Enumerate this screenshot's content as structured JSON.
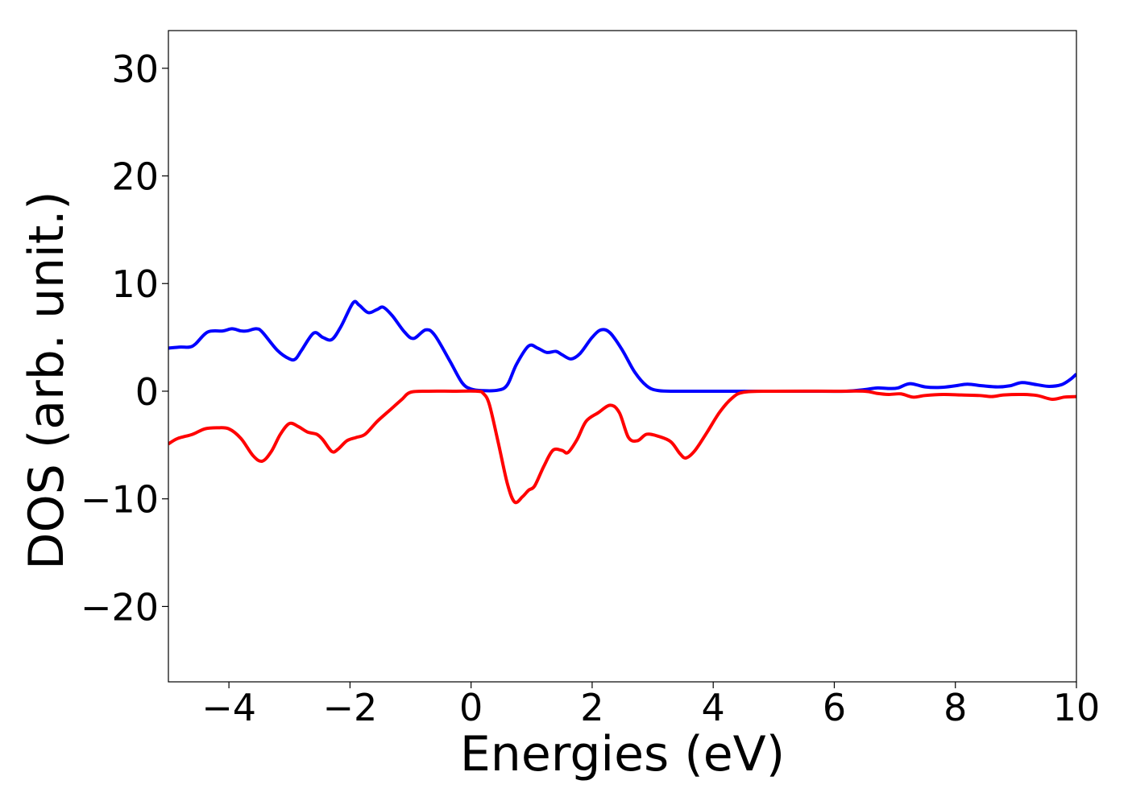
{
  "chart_data": {
    "type": "line",
    "title": "",
    "xlabel": "Energies (eV)",
    "ylabel": "DOS (arb. unit.)",
    "xlim": [
      -5,
      10
    ],
    "ylim": [
      -27,
      33.5
    ],
    "x_ticks": [
      -4,
      -2,
      0,
      2,
      4,
      6,
      8,
      10
    ],
    "x_tick_labels": [
      "−4",
      "−2",
      "0",
      "2",
      "4",
      "6",
      "8",
      "10"
    ],
    "y_ticks": [
      -20,
      -10,
      0,
      10,
      20,
      30
    ],
    "y_tick_labels": [
      "−20",
      "−10",
      "0",
      "10",
      "20",
      "30"
    ],
    "grid": false,
    "legend": false,
    "series": [
      {
        "color": "#0000ff",
        "points": [
          [
            -5.0,
            4.0
          ],
          [
            -4.8,
            4.1
          ],
          [
            -4.65,
            4.1
          ],
          [
            -4.55,
            4.4
          ],
          [
            -4.35,
            5.5
          ],
          [
            -4.1,
            5.6
          ],
          [
            -3.95,
            5.8
          ],
          [
            -3.8,
            5.6
          ],
          [
            -3.7,
            5.6
          ],
          [
            -3.55,
            5.8
          ],
          [
            -3.45,
            5.5
          ],
          [
            -3.2,
            3.8
          ],
          [
            -3.0,
            3.0
          ],
          [
            -2.9,
            3.0
          ],
          [
            -2.8,
            3.8
          ],
          [
            -2.6,
            5.4
          ],
          [
            -2.45,
            5.0
          ],
          [
            -2.3,
            4.8
          ],
          [
            -2.15,
            6.0
          ],
          [
            -1.95,
            8.2
          ],
          [
            -1.85,
            8.0
          ],
          [
            -1.7,
            7.3
          ],
          [
            -1.55,
            7.6
          ],
          [
            -1.45,
            7.8
          ],
          [
            -1.3,
            7.0
          ],
          [
            -1.1,
            5.5
          ],
          [
            -0.95,
            4.9
          ],
          [
            -0.75,
            5.7
          ],
          [
            -0.6,
            5.2
          ],
          [
            -0.35,
            2.8
          ],
          [
            -0.15,
            0.8
          ],
          [
            0.0,
            0.2
          ],
          [
            0.2,
            0.05
          ],
          [
            0.45,
            0.1
          ],
          [
            0.6,
            0.6
          ],
          [
            0.75,
            2.5
          ],
          [
            0.95,
            4.2
          ],
          [
            1.1,
            4.0
          ],
          [
            1.25,
            3.6
          ],
          [
            1.4,
            3.7
          ],
          [
            1.5,
            3.4
          ],
          [
            1.65,
            3.0
          ],
          [
            1.8,
            3.5
          ],
          [
            2.0,
            5.0
          ],
          [
            2.15,
            5.7
          ],
          [
            2.3,
            5.4
          ],
          [
            2.5,
            3.8
          ],
          [
            2.7,
            1.8
          ],
          [
            2.9,
            0.5
          ],
          [
            3.1,
            0.05
          ],
          [
            3.5,
            0.0
          ],
          [
            4.5,
            0.0
          ],
          [
            5.5,
            0.0
          ],
          [
            6.2,
            0.0
          ],
          [
            6.5,
            0.15
          ],
          [
            6.7,
            0.3
          ],
          [
            6.9,
            0.25
          ],
          [
            7.05,
            0.3
          ],
          [
            7.25,
            0.7
          ],
          [
            7.5,
            0.4
          ],
          [
            7.75,
            0.35
          ],
          [
            8.0,
            0.5
          ],
          [
            8.2,
            0.65
          ],
          [
            8.45,
            0.5
          ],
          [
            8.7,
            0.4
          ],
          [
            8.9,
            0.5
          ],
          [
            9.1,
            0.8
          ],
          [
            9.35,
            0.6
          ],
          [
            9.55,
            0.45
          ],
          [
            9.75,
            0.6
          ],
          [
            9.9,
            1.1
          ],
          [
            10.0,
            1.6
          ]
        ]
      },
      {
        "color": "#ff0000",
        "points": [
          [
            -5.0,
            -4.9
          ],
          [
            -4.85,
            -4.4
          ],
          [
            -4.6,
            -4.0
          ],
          [
            -4.4,
            -3.5
          ],
          [
            -4.2,
            -3.4
          ],
          [
            -4.0,
            -3.5
          ],
          [
            -3.8,
            -4.4
          ],
          [
            -3.6,
            -6.0
          ],
          [
            -3.45,
            -6.5
          ],
          [
            -3.3,
            -5.6
          ],
          [
            -3.15,
            -4.0
          ],
          [
            -3.0,
            -3.0
          ],
          [
            -2.85,
            -3.3
          ],
          [
            -2.7,
            -3.8
          ],
          [
            -2.55,
            -4.0
          ],
          [
            -2.45,
            -4.5
          ],
          [
            -2.3,
            -5.6
          ],
          [
            -2.2,
            -5.4
          ],
          [
            -2.05,
            -4.6
          ],
          [
            -1.9,
            -4.3
          ],
          [
            -1.75,
            -4.0
          ],
          [
            -1.55,
            -2.8
          ],
          [
            -1.35,
            -1.8
          ],
          [
            -1.15,
            -0.8
          ],
          [
            -1.0,
            -0.1
          ],
          [
            -0.7,
            0.0
          ],
          [
            -0.3,
            0.0
          ],
          [
            0.1,
            0.0
          ],
          [
            0.2,
            -0.2
          ],
          [
            0.3,
            -1.2
          ],
          [
            0.45,
            -4.8
          ],
          [
            0.6,
            -8.6
          ],
          [
            0.72,
            -10.3
          ],
          [
            0.85,
            -9.8
          ],
          [
            0.95,
            -9.2
          ],
          [
            1.05,
            -8.8
          ],
          [
            1.2,
            -7.0
          ],
          [
            1.35,
            -5.5
          ],
          [
            1.5,
            -5.5
          ],
          [
            1.6,
            -5.7
          ],
          [
            1.75,
            -4.5
          ],
          [
            1.9,
            -2.8
          ],
          [
            2.1,
            -2.0
          ],
          [
            2.3,
            -1.3
          ],
          [
            2.45,
            -2.0
          ],
          [
            2.6,
            -4.3
          ],
          [
            2.75,
            -4.6
          ],
          [
            2.9,
            -4.0
          ],
          [
            3.1,
            -4.2
          ],
          [
            3.3,
            -4.7
          ],
          [
            3.45,
            -5.8
          ],
          [
            3.55,
            -6.2
          ],
          [
            3.7,
            -5.5
          ],
          [
            3.9,
            -3.8
          ],
          [
            4.1,
            -2.0
          ],
          [
            4.3,
            -0.7
          ],
          [
            4.5,
            -0.1
          ],
          [
            5.0,
            0.0
          ],
          [
            6.0,
            0.0
          ],
          [
            6.5,
            0.0
          ],
          [
            6.7,
            -0.2
          ],
          [
            6.9,
            -0.3
          ],
          [
            7.1,
            -0.25
          ],
          [
            7.3,
            -0.55
          ],
          [
            7.5,
            -0.4
          ],
          [
            7.8,
            -0.3
          ],
          [
            8.1,
            -0.35
          ],
          [
            8.4,
            -0.4
          ],
          [
            8.6,
            -0.5
          ],
          [
            8.8,
            -0.35
          ],
          [
            9.1,
            -0.3
          ],
          [
            9.35,
            -0.4
          ],
          [
            9.6,
            -0.75
          ],
          [
            9.8,
            -0.55
          ],
          [
            10.0,
            -0.5
          ]
        ]
      }
    ]
  }
}
